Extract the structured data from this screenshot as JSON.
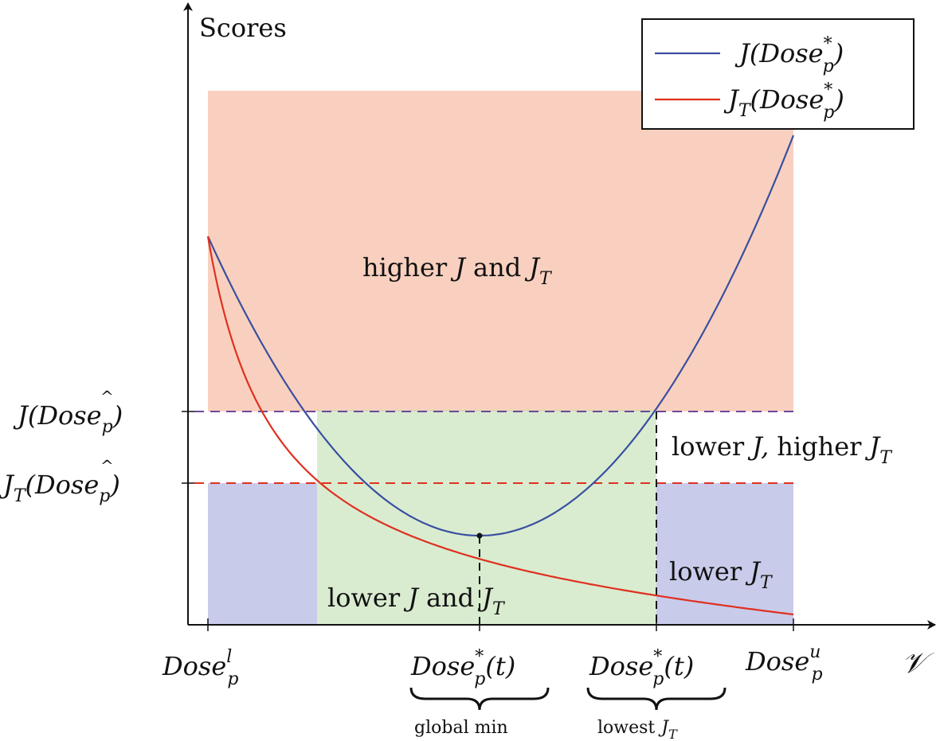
{
  "axes": {
    "y_label": "Scores",
    "x_label": "𝒱"
  },
  "legend": {
    "entries": [
      {
        "label_main": "J(Dose",
        "label_sup": "*",
        "label_sub": "p",
        "label_end": ")",
        "color": "#3a4fa0"
      },
      {
        "label_main": "J",
        "label_sub_T": "T",
        "label_mid": "(Dose",
        "label_sup": "*",
        "label_sub": "p",
        "label_end": ")",
        "color": "#e03020"
      }
    ]
  },
  "levels": {
    "j_hat": {
      "main": "J(Dose",
      "sub": "p",
      "end": ")",
      "hat": "^"
    },
    "jt_hat": {
      "main": "J",
      "sub_T": "T",
      "mid": "(Dose",
      "sub": "p",
      "end": ")",
      "hat": "^"
    }
  },
  "regions": {
    "higher": {
      "text_a": "higher",
      "text_b": "J",
      "text_c": "and",
      "text_d": "J",
      "text_sub": "T",
      "color": "#f4a98a"
    },
    "lower_both": {
      "text_a": "lower",
      "text_b": "J",
      "text_c": "and",
      "text_d": "J",
      "text_sub": "T",
      "color": "#bfe0b0"
    },
    "lower_j_higher_jt": {
      "text_a": "lower",
      "text_b": "J,",
      "text_c": "higher",
      "text_d": "J",
      "text_sub": "T"
    },
    "lower_jt": {
      "text_a": "lower",
      "text_d": "J",
      "text_sub": "T",
      "color": "#9aa0d8"
    }
  },
  "ticks": {
    "lower": {
      "main": "Dose",
      "sub": "p",
      "sup": "l"
    },
    "global": {
      "main": "Dose",
      "sub": "p",
      "sup": "*",
      "end": "(t)",
      "caption": "global min"
    },
    "lowest": {
      "main": "Dose",
      "sub": "p",
      "sup": "*",
      "end": "(t)",
      "caption_a": "lowest",
      "caption_b": "J",
      "caption_sub": "T"
    },
    "upper": {
      "main": "Dose",
      "sub": "p",
      "sup": "u"
    }
  }
}
